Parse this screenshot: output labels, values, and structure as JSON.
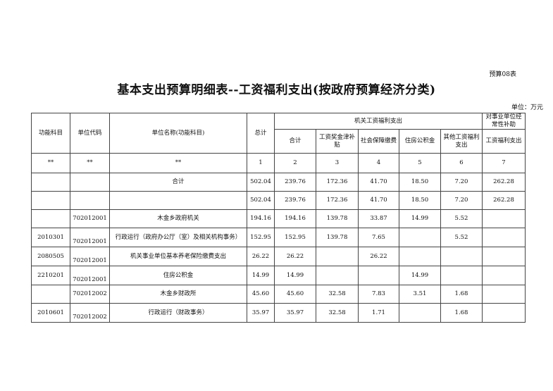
{
  "form_number": "预算08表",
  "title": "基本支出预算明细表--工资福利支出(按政府预算经济分类)",
  "unit": "单位：万元",
  "table": {
    "headers": {
      "func_subject": "功能科目",
      "unit_code": "单位代码",
      "unit_name": "单位名称(功能科目)",
      "total": "总计",
      "group_org": "机关工资福利支出",
      "group_inst": "对事业单位经常性补助",
      "sub": [
        "合计",
        "工资奖金津补贴",
        "社会保障缴费",
        "住房公积金",
        "其他工资福利支出",
        "工资福利支出"
      ]
    },
    "index_row": [
      "**",
      "**",
      "**",
      "1",
      "2",
      "3",
      "4",
      "5",
      "6",
      "7"
    ],
    "rows": [
      [
        "",
        "",
        "合计",
        "502.04",
        "239.76",
        "172.36",
        "41.70",
        "18.50",
        "7.20",
        "262.28"
      ],
      [
        "",
        "",
        "",
        "502.04",
        "239.76",
        "172.36",
        "41.70",
        "18.50",
        "7.20",
        "262.28"
      ],
      [
        "",
        "702012001",
        "木金乡政府机关",
        "194.16",
        "194.16",
        "139.78",
        "33.87",
        "14.99",
        "5.52",
        ""
      ],
      [
        "2010301",
        "702012001",
        "行政运行（政府办公厅（室）及相关机构事务）",
        "152.95",
        "152.95",
        "139.78",
        "7.65",
        "",
        "5.52",
        ""
      ],
      [
        "2080505",
        "702012001",
        "机关事业单位基本养老保险缴费支出",
        "26.22",
        "26.22",
        "",
        "26.22",
        "",
        "",
        ""
      ],
      [
        "2210201",
        "702012001",
        "住房公积金",
        "14.99",
        "14.99",
        "",
        "",
        "14.99",
        "",
        ""
      ],
      [
        "",
        "702012002",
        "木金乡财政所",
        "45.60",
        "45.60",
        "32.58",
        "7.83",
        "3.51",
        "1.68",
        ""
      ],
      [
        "2010601",
        "702012002",
        "行政运行（财政事务）",
        "35.97",
        "35.97",
        "32.58",
        "1.71",
        "",
        "1.68",
        ""
      ]
    ]
  }
}
